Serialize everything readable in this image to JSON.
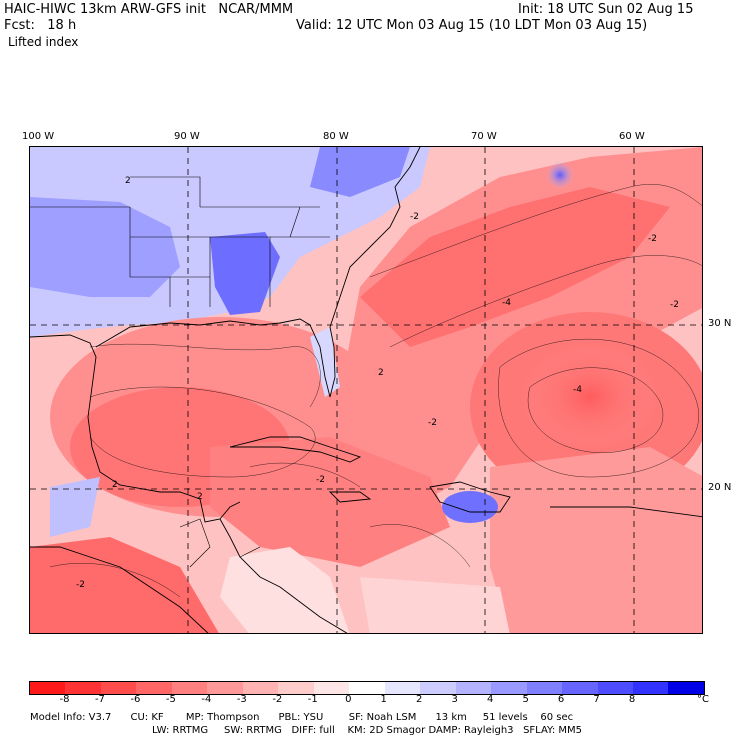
{
  "header": {
    "title": "HAIC-HIWC 13km ARW-GFS init   NCAR/MMM",
    "forecast": "Fcst:   18 h",
    "field": "Lifted index",
    "init": "Init: 18 UTC Sun 02 Aug 15",
    "valid": "Valid: 12 UTC Mon 03 Aug 15 (10 LDT Mon 03 Aug 15)"
  },
  "longitude_labels": [
    "100 W",
    "90 W",
    "80 W",
    "70 W",
    "60 W"
  ],
  "latitude_labels": [
    "30 N",
    "20 N"
  ],
  "contour_labels": [
    "2",
    "2",
    "2",
    "-2",
    "-4",
    "-4",
    "-2",
    "2",
    "-2",
    "-2",
    "-2",
    "-2"
  ],
  "colorbar": {
    "ticks": [
      "-8",
      "-7",
      "-6",
      "-5",
      "-4",
      "-3",
      "-2",
      "-1",
      "0",
      "1",
      "2",
      "3",
      "4",
      "5",
      "6",
      "7",
      "8"
    ],
    "unit": "°C",
    "colors": [
      "#ff1a1a",
      "#ff3333",
      "#ff4d4d",
      "#ff6666",
      "#ff8080",
      "#ff9999",
      "#ffb3b3",
      "#ffcccc",
      "#ffe6e6",
      "#ffffff",
      "#e6e6ff",
      "#ccccff",
      "#b3b3ff",
      "#9999ff",
      "#8080ff",
      "#6666ff",
      "#4d4dff",
      "#3333ff",
      "#0000e6"
    ]
  },
  "model_info": {
    "line1": "Model Info: V3.7      CU: KF       MP: Thompson      PBL: YSU        SF: Noah LSM      13 km     51 levels    60 sec",
    "line2": "LW: RRTMG     SW: RRTMG   DIFF: full    KM: 2D Smagor DAMP: Rayleigh3   SFLAY: MM5"
  }
}
